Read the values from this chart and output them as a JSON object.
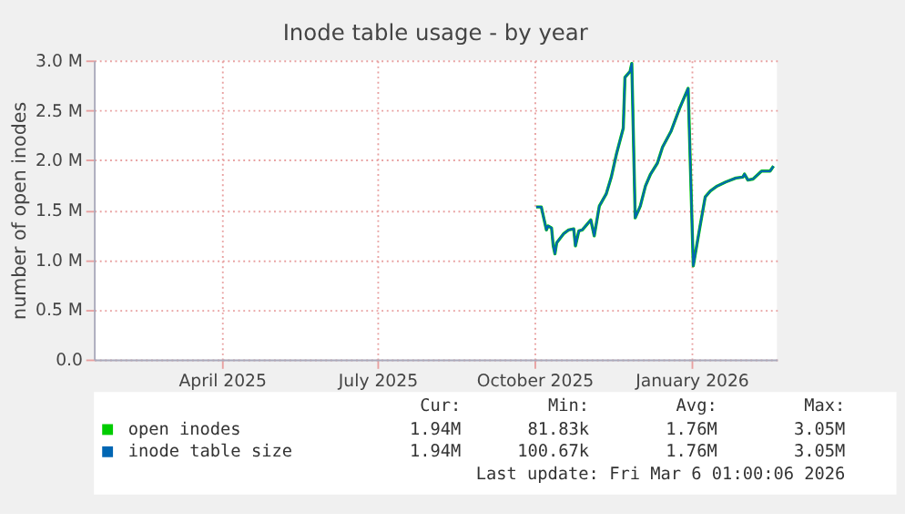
{
  "chart_data": {
    "type": "line",
    "title": "Inode table usage - by year",
    "ylabel": "number of open inodes",
    "x": [
      "2025-10-16",
      "2025-10-19",
      "2025-10-22",
      "2025-10-23",
      "2025-10-25",
      "2025-10-26",
      "2025-10-27",
      "2025-10-28",
      "2025-11-01",
      "2025-11-04",
      "2025-11-07",
      "2025-11-08",
      "2025-11-10",
      "2025-11-12",
      "2025-11-17",
      "2025-11-19",
      "2025-11-22",
      "2025-11-26",
      "2025-11-29",
      "2025-12-02",
      "2025-12-06",
      "2025-12-07",
      "2025-12-10",
      "2025-12-11",
      "2025-12-13",
      "2025-12-16",
      "2025-12-19",
      "2025-12-22",
      "2025-12-26",
      "2025-12-29",
      "2026-01-03",
      "2026-01-08",
      "2026-01-13",
      "2026-01-16",
      "2026-01-20",
      "2026-01-23",
      "2026-01-26",
      "2026-01-30",
      "2026-02-04",
      "2026-02-10",
      "2026-02-14",
      "2026-02-15",
      "2026-02-17",
      "2026-02-20",
      "2026-02-25",
      "2026-03-02",
      "2026-03-04"
    ],
    "series": [
      {
        "name": "open inodes",
        "color": "#00cc00",
        "values": [
          1.53,
          1.53,
          1.3,
          1.34,
          1.32,
          1.14,
          1.06,
          1.17,
          1.26,
          1.3,
          1.31,
          1.14,
          1.29,
          1.3,
          1.4,
          1.24,
          1.54,
          1.66,
          1.83,
          2.06,
          2.32,
          2.83,
          2.89,
          2.97,
          1.42,
          1.54,
          1.74,
          1.86,
          1.97,
          2.13,
          2.29,
          2.52,
          2.72,
          0.94,
          1.34,
          1.63,
          1.69,
          1.74,
          1.78,
          1.82,
          1.83,
          1.86,
          1.8,
          1.81,
          1.89,
          1.89,
          1.94
        ]
      },
      {
        "name": "inode table size",
        "color": "#0066b3",
        "values": [
          1.53,
          1.53,
          1.3,
          1.34,
          1.32,
          1.14,
          1.06,
          1.17,
          1.26,
          1.3,
          1.31,
          1.14,
          1.29,
          1.3,
          1.4,
          1.24,
          1.54,
          1.66,
          1.83,
          2.06,
          2.32,
          2.83,
          2.89,
          2.97,
          1.42,
          1.54,
          1.74,
          1.86,
          1.97,
          2.13,
          2.29,
          2.52,
          2.72,
          0.94,
          1.34,
          1.63,
          1.69,
          1.74,
          1.78,
          1.82,
          1.83,
          1.86,
          1.8,
          1.81,
          1.89,
          1.89,
          1.94
        ]
      }
    ],
    "xlim": [
      "2025-01-30",
      "2026-03-06"
    ],
    "xticks": [
      {
        "value": "2025-04-15",
        "label": "April 2025"
      },
      {
        "value": "2025-07-15",
        "label": "July 2025"
      },
      {
        "value": "2025-10-15",
        "label": "October 2025"
      },
      {
        "value": "2026-01-15",
        "label": "January 2026"
      }
    ],
    "ylim": [
      0,
      3.0
    ],
    "yticks": [
      {
        "value": 0,
        "label": "0.0"
      },
      {
        "value": 0.5,
        "label": "0.5 M"
      },
      {
        "value": 1.0,
        "label": "1.0 M"
      },
      {
        "value": 1.5,
        "label": "1.5 M"
      },
      {
        "value": 2.0,
        "label": "2.0 M"
      },
      {
        "value": 2.5,
        "label": "2.5 M"
      },
      {
        "value": 3.0,
        "label": "3.0 M"
      }
    ],
    "grid": true,
    "legend": "bottom",
    "marker": "none",
    "line_style": "solid",
    "annotations": [
      "Cur:",
      "Min:",
      "Avg:",
      "Max:",
      "1.94M",
      "81.83k",
      "1.76M",
      "3.05M",
      "1.94M",
      "100.67k",
      "1.76M",
      "3.05M",
      "Last update: Fri Mar  6 01:00:06 2026"
    ]
  }
}
